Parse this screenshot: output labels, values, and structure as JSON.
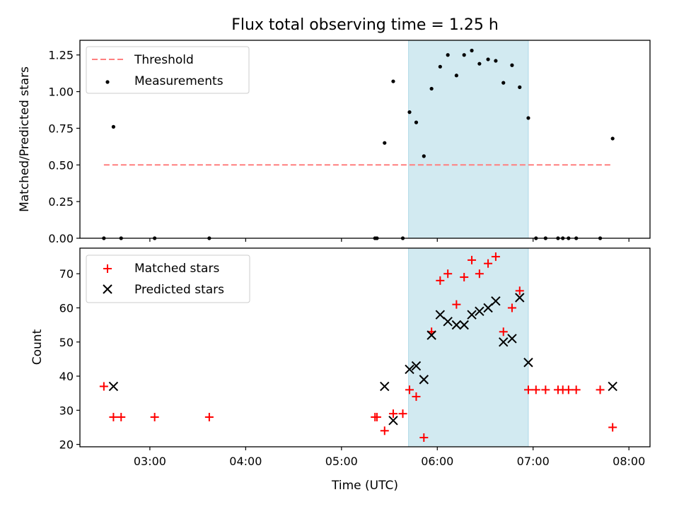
{
  "chart_data": [
    {
      "type": "scatter",
      "title": "Flux total observing time = 1.25 h",
      "xlabel": "",
      "ylabel": "Matched/Predicted stars",
      "xlim": [
        2.27,
        8.22
      ],
      "ylim": [
        0,
        1.35
      ],
      "yticks": [
        0.0,
        0.25,
        0.5,
        0.75,
        1.0,
        1.25
      ],
      "ytick_labels": [
        "0.00",
        "0.25",
        "0.50",
        "0.75",
        "1.00",
        "1.25"
      ],
      "xticks": [
        3,
        4,
        5,
        6,
        7,
        8
      ],
      "span": {
        "x0": 5.7,
        "x1": 6.95,
        "color": "#add8e6"
      },
      "threshold": {
        "name": "Threshold",
        "y": 0.5,
        "x0": 2.52,
        "x1": 7.83,
        "color": "#ff7f7f"
      },
      "series": [
        {
          "name": "Measurements",
          "marker": "dot",
          "color": "#000000",
          "points": [
            [
              2.52,
              0.0
            ],
            [
              2.62,
              0.76
            ],
            [
              2.7,
              0.0
            ],
            [
              3.05,
              0.0
            ],
            [
              3.62,
              0.0
            ],
            [
              5.35,
              0.0
            ],
            [
              5.37,
              0.0
            ],
            [
              5.45,
              0.65
            ],
            [
              5.54,
              1.07
            ],
            [
              5.64,
              0.0
            ],
            [
              5.71,
              0.86
            ],
            [
              5.78,
              0.79
            ],
            [
              5.86,
              0.56
            ],
            [
              5.94,
              1.02
            ],
            [
              6.03,
              1.17
            ],
            [
              6.11,
              1.25
            ],
            [
              6.2,
              1.11
            ],
            [
              6.28,
              1.25
            ],
            [
              6.36,
              1.28
            ],
            [
              6.44,
              1.19
            ],
            [
              6.53,
              1.22
            ],
            [
              6.61,
              1.21
            ],
            [
              6.69,
              1.06
            ],
            [
              6.78,
              1.18
            ],
            [
              6.86,
              1.03
            ],
            [
              6.95,
              0.82
            ],
            [
              7.03,
              0.0
            ],
            [
              7.13,
              0.0
            ],
            [
              7.26,
              0.0
            ],
            [
              7.31,
              0.0
            ],
            [
              7.37,
              0.0
            ],
            [
              7.45,
              0.0
            ],
            [
              7.7,
              0.0
            ],
            [
              7.83,
              0.68
            ]
          ]
        }
      ],
      "legend": {
        "placement": "upper-left",
        "entries": [
          "Threshold",
          "Measurements"
        ]
      }
    },
    {
      "type": "scatter",
      "title": "",
      "xlabel": "Time (UTC)",
      "ylabel": "Count",
      "xlim": [
        2.27,
        8.22
      ],
      "ylim": [
        19.3,
        77.5
      ],
      "yticks": [
        20,
        30,
        40,
        50,
        60,
        70
      ],
      "ytick_labels": [
        "20",
        "30",
        "40",
        "50",
        "60",
        "70"
      ],
      "xticks": [
        3,
        4,
        5,
        6,
        7,
        8
      ],
      "xtick_labels": [
        "03:00",
        "04:00",
        "05:00",
        "06:00",
        "07:00",
        "08:00"
      ],
      "span": {
        "x0": 5.7,
        "x1": 6.95,
        "color": "#add8e6"
      },
      "series": [
        {
          "name": "Matched stars",
          "marker": "plus",
          "color": "#ff0000",
          "points": [
            [
              2.52,
              37
            ],
            [
              2.62,
              28
            ],
            [
              2.7,
              28
            ],
            [
              3.05,
              28
            ],
            [
              3.62,
              28
            ],
            [
              5.35,
              28
            ],
            [
              5.37,
              28
            ],
            [
              5.45,
              24
            ],
            [
              5.54,
              29
            ],
            [
              5.64,
              29
            ],
            [
              5.71,
              36
            ],
            [
              5.78,
              34
            ],
            [
              5.86,
              22
            ],
            [
              5.94,
              53
            ],
            [
              6.03,
              68
            ],
            [
              6.11,
              70
            ],
            [
              6.2,
              61
            ],
            [
              6.28,
              69
            ],
            [
              6.36,
              74
            ],
            [
              6.44,
              70
            ],
            [
              6.53,
              73
            ],
            [
              6.61,
              75
            ],
            [
              6.69,
              53
            ],
            [
              6.78,
              60
            ],
            [
              6.86,
              65
            ],
            [
              6.95,
              36
            ],
            [
              7.03,
              36
            ],
            [
              7.13,
              36
            ],
            [
              7.26,
              36
            ],
            [
              7.31,
              36
            ],
            [
              7.37,
              36
            ],
            [
              7.45,
              36
            ],
            [
              7.7,
              36
            ],
            [
              7.83,
              25
            ]
          ]
        },
        {
          "name": "Predicted stars",
          "marker": "x",
          "color": "#000000",
          "points": [
            [
              2.62,
              37
            ],
            [
              5.45,
              37
            ],
            [
              5.54,
              27
            ],
            [
              5.71,
              42
            ],
            [
              5.78,
              43
            ],
            [
              5.86,
              39
            ],
            [
              5.94,
              52
            ],
            [
              6.03,
              58
            ],
            [
              6.11,
              56
            ],
            [
              6.2,
              55
            ],
            [
              6.28,
              55
            ],
            [
              6.36,
              58
            ],
            [
              6.44,
              59
            ],
            [
              6.53,
              60
            ],
            [
              6.61,
              62
            ],
            [
              6.69,
              50
            ],
            [
              6.78,
              51
            ],
            [
              6.86,
              63
            ],
            [
              6.95,
              44
            ],
            [
              7.83,
              37
            ]
          ]
        }
      ],
      "legend": {
        "placement": "upper-left",
        "entries": [
          "Matched stars",
          "Predicted stars"
        ]
      }
    }
  ]
}
